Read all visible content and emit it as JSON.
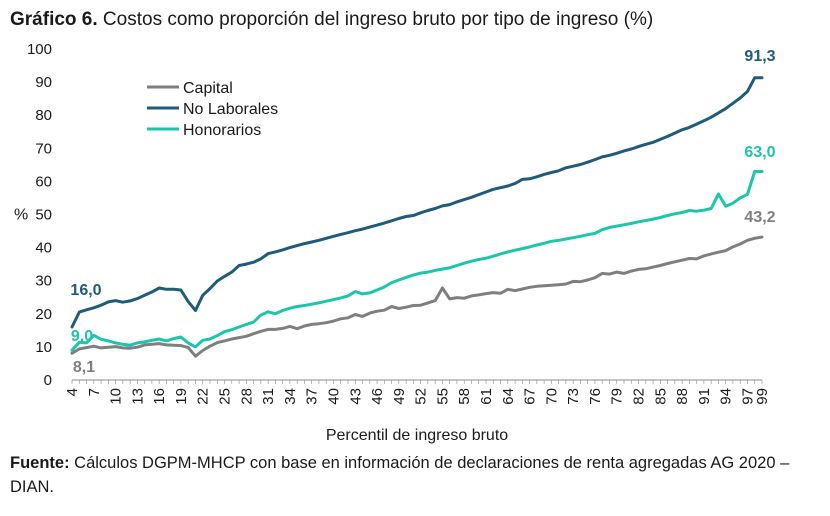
{
  "title": {
    "prefix": "Gráfico 6.",
    "text": " Costos como proporción del ingreso bruto por tipo de ingreso (%)"
  },
  "source": {
    "prefix": "Fuente:",
    "text": " Cálculos DGPM-MHCP con base en información de declaraciones de renta agregadas AG 2020 – DIAN."
  },
  "chart_data": {
    "type": "line",
    "title": "Costos como proporción del ingreso bruto por tipo de ingreso (%)",
    "xlabel": "Percentil de ingreso bruto",
    "ylabel": "%",
    "ylim": [
      0,
      100
    ],
    "yticks": [
      "0",
      "10",
      "20",
      "30",
      "40",
      "50",
      "60",
      "70",
      "80",
      "90",
      "100"
    ],
    "xlim": [
      4,
      99
    ],
    "xticks": [
      "4",
      "7",
      "10",
      "13",
      "16",
      "19",
      "22",
      "25",
      "28",
      "31",
      "34",
      "37",
      "40",
      "43",
      "46",
      "49",
      "52",
      "55",
      "58",
      "61",
      "64",
      "67",
      "70",
      "73",
      "76",
      "79",
      "82",
      "85",
      "88",
      "91",
      "94",
      "97",
      "99"
    ],
    "x": [
      4,
      5,
      6,
      7,
      8,
      9,
      10,
      11,
      12,
      13,
      14,
      15,
      16,
      17,
      18,
      19,
      20,
      21,
      22,
      23,
      24,
      25,
      26,
      27,
      28,
      29,
      30,
      31,
      32,
      33,
      34,
      35,
      36,
      37,
      38,
      39,
      40,
      41,
      42,
      43,
      44,
      45,
      46,
      47,
      48,
      49,
      50,
      51,
      52,
      53,
      54,
      55,
      56,
      57,
      58,
      59,
      60,
      61,
      62,
      63,
      64,
      65,
      66,
      67,
      68,
      69,
      70,
      71,
      72,
      73,
      74,
      75,
      76,
      77,
      78,
      79,
      80,
      81,
      82,
      83,
      84,
      85,
      86,
      87,
      88,
      89,
      90,
      91,
      92,
      93,
      94,
      95,
      96,
      97,
      98,
      99
    ],
    "legend": "top-left",
    "grid": false,
    "series": [
      {
        "name": "Capital",
        "color": "#7f7f7f",
        "end_label": "43,2",
        "start_label": "8,1",
        "values": [
          8.1,
          9.4,
          9.8,
          10.2,
          9.7,
          9.9,
          10.1,
          9.7,
          9.6,
          9.9,
          10.6,
          10.8,
          11.0,
          10.6,
          10.5,
          10.4,
          9.8,
          7.2,
          8.9,
          10.2,
          11.3,
          11.8,
          12.4,
          12.8,
          13.2,
          14.0,
          14.7,
          15.3,
          15.3,
          15.6,
          16.2,
          15.5,
          16.3,
          16.8,
          17.0,
          17.3,
          17.8,
          18.5,
          18.8,
          19.8,
          19.2,
          20.2,
          20.8,
          21.1,
          22.2,
          21.6,
          22.0,
          22.5,
          22.6,
          23.3,
          24.0,
          27.8,
          24.5,
          24.9,
          24.7,
          25.4,
          25.7,
          26.1,
          26.4,
          26.2,
          27.4,
          27.0,
          27.5,
          28.0,
          28.3,
          28.5,
          28.6,
          28.8,
          29.0,
          29.8,
          29.7,
          30.2,
          30.9,
          32.2,
          32.0,
          32.6,
          32.2,
          32.9,
          33.4,
          33.6,
          34.1,
          34.6,
          35.2,
          35.7,
          36.2,
          36.7,
          36.6,
          37.5,
          38.1,
          38.6,
          39.1,
          40.2,
          41.1,
          42.2,
          42.8,
          43.2
        ]
      },
      {
        "name": "No Laborales",
        "color": "#1f5b7a",
        "end_label": "91,3",
        "start_label": "16,0",
        "values": [
          16.0,
          20.5,
          21.2,
          21.8,
          22.6,
          23.6,
          24.0,
          23.5,
          23.9,
          24.6,
          25.6,
          26.6,
          27.8,
          27.4,
          27.4,
          27.2,
          23.7,
          21.0,
          25.6,
          27.6,
          29.9,
          31.3,
          32.6,
          34.6,
          35.0,
          35.6,
          36.6,
          38.2,
          38.7,
          39.3,
          40.0,
          40.6,
          41.2,
          41.7,
          42.2,
          42.8,
          43.4,
          44.0,
          44.5,
          45.1,
          45.6,
          46.2,
          46.8,
          47.4,
          48.1,
          48.8,
          49.4,
          49.7,
          50.5,
          51.2,
          51.8,
          52.6,
          53.0,
          53.8,
          54.5,
          55.2,
          56.0,
          56.8,
          57.6,
          58.1,
          58.6,
          59.4,
          60.6,
          60.8,
          61.4,
          62.1,
          62.7,
          63.2,
          64.1,
          64.6,
          65.1,
          65.8,
          66.6,
          67.4,
          67.9,
          68.5,
          69.2,
          69.8,
          70.5,
          71.2,
          71.8,
          72.7,
          73.6,
          74.6,
          75.6,
          76.3,
          77.3,
          78.3,
          79.4,
          80.7,
          82.0,
          83.6,
          85.2,
          87.2,
          91.3,
          91.3
        ]
      },
      {
        "name": "Honorarios",
        "color": "#1cc6a8",
        "end_label": "63,0",
        "start_label": "9,0",
        "values": [
          9.0,
          11.4,
          11.2,
          13.5,
          12.3,
          11.8,
          11.2,
          10.8,
          10.5,
          11.2,
          11.5,
          12.0,
          12.4,
          11.8,
          12.5,
          13.0,
          11.2,
          10.0,
          12.0,
          12.4,
          13.4,
          14.6,
          15.2,
          16.0,
          16.8,
          17.5,
          19.6,
          20.6,
          20.0,
          21.0,
          21.7,
          22.2,
          22.5,
          22.9,
          23.3,
          23.8,
          24.3,
          24.8,
          25.4,
          26.7,
          26.0,
          26.3,
          27.2,
          28.1,
          29.4,
          30.2,
          31.0,
          31.7,
          32.3,
          32.6,
          33.1,
          33.5,
          33.9,
          34.6,
          35.3,
          35.9,
          36.4,
          36.8,
          37.4,
          38.1,
          38.7,
          39.2,
          39.7,
          40.2,
          40.8,
          41.3,
          41.9,
          42.2,
          42.6,
          43.0,
          43.4,
          43.9,
          44.3,
          45.4,
          46.1,
          46.5,
          46.9,
          47.3,
          47.8,
          48.2,
          48.6,
          49.1,
          49.7,
          50.2,
          50.6,
          51.2,
          51.0,
          51.3,
          51.8,
          56.2,
          52.5,
          53.4,
          55.0,
          56.1,
          63.0,
          63.0
        ]
      }
    ]
  }
}
